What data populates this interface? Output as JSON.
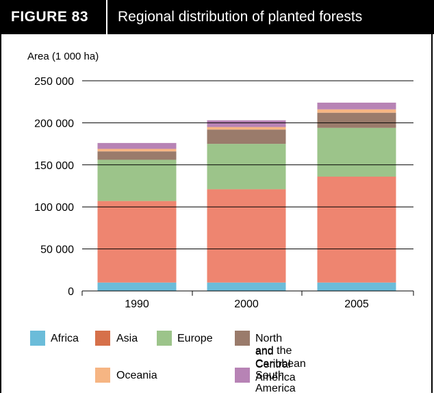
{
  "header": {
    "figure_label": "FIGURE  83",
    "title": "Regional distribution of planted forests"
  },
  "chart_data": {
    "type": "bar",
    "stacked": true,
    "ylabel": "Area (1 000 ha)",
    "ylim": [
      0,
      250000
    ],
    "yticks": [
      "250 000",
      "200 000",
      "150 000",
      "100 000",
      "50 000",
      "0"
    ],
    "ytick_values": [
      250000,
      200000,
      150000,
      100000,
      50000,
      0
    ],
    "categories": [
      "1990",
      "2000",
      "2005"
    ],
    "series": [
      {
        "name": "Africa",
        "color": "#6bbcd9",
        "values": [
          10000,
          10000,
          10000
        ]
      },
      {
        "name": "Asia",
        "color": "#ee8570",
        "values": [
          97000,
          111000,
          126000
        ]
      },
      {
        "name": "Europe",
        "color": "#9cc48a",
        "values": [
          49000,
          54000,
          58000
        ]
      },
      {
        "name": "North and Central America and the Caribbean",
        "color": "#9a7b6b",
        "values": [
          10000,
          17000,
          18000
        ]
      },
      {
        "name": "Oceania",
        "color": "#f6b583",
        "values": [
          3000,
          3000,
          4000
        ]
      },
      {
        "name": "South America",
        "color": "#b783b5",
        "values": [
          7000,
          8000,
          8000
        ]
      }
    ],
    "grid": true
  },
  "legend": {
    "africa": "Africa",
    "asia": "Asia",
    "europe": "Europe",
    "nca_line1": "North and Central America",
    "nca_line2": "and the Caribbean",
    "oceania": "Oceania",
    "south_america": "South America"
  }
}
